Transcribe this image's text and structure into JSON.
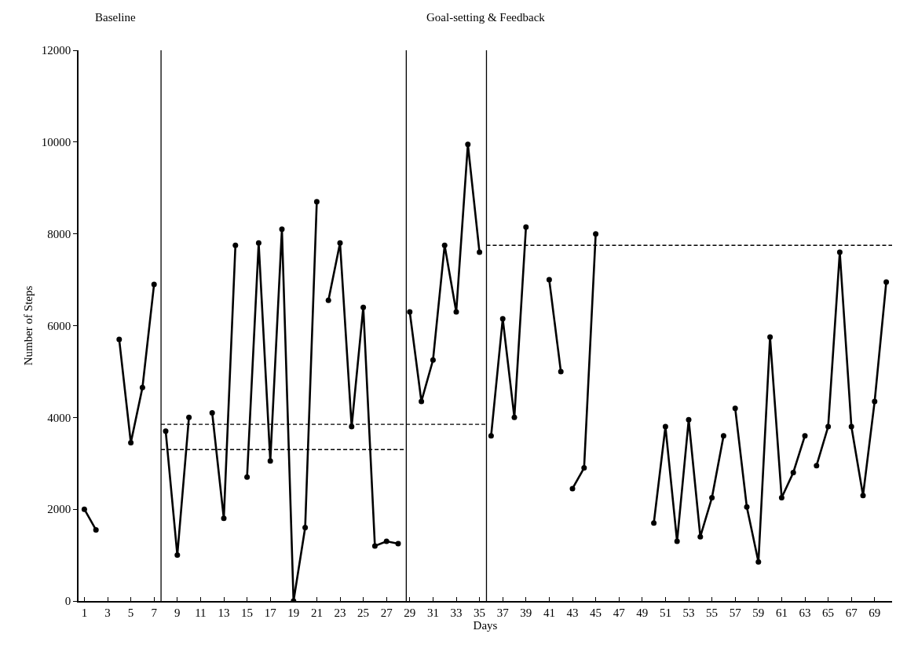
{
  "chart_data": {
    "type": "line",
    "xlabel": "Days",
    "ylabel": "Number of Steps",
    "annotations": [
      "Baseline",
      "Goal-setting & Feedback"
    ],
    "xlim": [
      0.5,
      70.5
    ],
    "ylim": [
      0,
      12000
    ],
    "xticks": [
      1,
      3,
      5,
      7,
      9,
      11,
      13,
      15,
      17,
      19,
      21,
      23,
      25,
      27,
      29,
      31,
      33,
      35,
      37,
      39,
      41,
      43,
      45,
      47,
      49,
      51,
      53,
      55,
      57,
      59,
      61,
      63,
      65,
      67,
      69
    ],
    "yticks": [
      0,
      2000,
      4000,
      6000,
      8000,
      10000,
      12000
    ],
    "marker": "circle",
    "line_style": "solid",
    "ref_lines": [
      {
        "axis": "x",
        "value": 7.6,
        "color": "#000000"
      },
      {
        "axis": "x",
        "value": 28.7,
        "color": "#000000"
      },
      {
        "axis": "x",
        "value": 35.6,
        "color": "#000000"
      }
    ],
    "series": [
      {
        "color": "#000000",
        "x": [
          1,
          2
        ],
        "values": [
          2000,
          1550
        ]
      },
      {
        "color": "#000000",
        "x": [
          4,
          5,
          6,
          7
        ],
        "values": [
          5700,
          3450,
          4650,
          6900
        ]
      },
      {
        "color": "#000000",
        "x": [
          8,
          9,
          10
        ],
        "values": [
          3700,
          1000,
          4000
        ]
      },
      {
        "color": "#000000",
        "x": [
          12,
          13,
          14
        ],
        "values": [
          4100,
          1800,
          7750
        ]
      },
      {
        "color": "#000000",
        "x": [
          15,
          16,
          17,
          18,
          19,
          20,
          21
        ],
        "values": [
          2700,
          7800,
          3050,
          8100,
          0,
          1600,
          8700
        ]
      },
      {
        "color": "#000000",
        "x": [
          22,
          23,
          24,
          25,
          26,
          27,
          28
        ],
        "values": [
          6550,
          7800,
          3800,
          6400,
          1200,
          1300,
          1250
        ]
      },
      {
        "color": "#000000",
        "x": [
          29,
          30,
          31,
          32,
          33,
          34,
          35
        ],
        "values": [
          6300,
          4350,
          5250,
          7750,
          6300,
          9950,
          7600
        ]
      },
      {
        "color": "#000000",
        "x": [
          36,
          37,
          38,
          39
        ],
        "values": [
          3600,
          6150,
          4000,
          8150
        ]
      },
      {
        "color": "#000000",
        "x": [
          41,
          42
        ],
        "values": [
          7000,
          5000
        ]
      },
      {
        "color": "#000000",
        "x": [
          43,
          44,
          45
        ],
        "values": [
          2450,
          2900,
          8000
        ]
      },
      {
        "color": "#000000",
        "x": [
          50,
          51,
          52,
          53,
          54,
          55,
          56
        ],
        "values": [
          1700,
          3800,
          1300,
          3950,
          1400,
          2250,
          3600
        ]
      },
      {
        "color": "#000000",
        "x": [
          57,
          58,
          59,
          60,
          61,
          62,
          63
        ],
        "values": [
          4200,
          2050,
          850,
          5750,
          2250,
          2800,
          3600
        ]
      },
      {
        "color": "#000000",
        "x": [
          64,
          65,
          66,
          67,
          68,
          69,
          70
        ],
        "values": [
          2950,
          3800,
          7600,
          3800,
          2300,
          4350,
          6950
        ]
      },
      {
        "color": "#000000",
        "x": [
          7.6,
          28.7
        ],
        "values": [
          3300,
          3300
        ],
        "line_style": "dashed",
        "marker": "none"
      },
      {
        "color": "#000000",
        "x": [
          7.6,
          35.6
        ],
        "values": [
          3850,
          3850
        ],
        "line_style": "dashed",
        "marker": "none"
      },
      {
        "color": "#000000",
        "x": [
          35.6,
          70.5
        ],
        "values": [
          7750,
          7750
        ],
        "line_style": "dashed",
        "marker": "none"
      }
    ]
  }
}
